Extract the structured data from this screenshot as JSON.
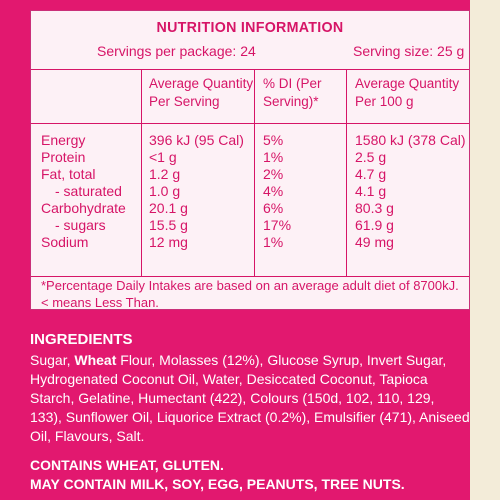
{
  "nutrition": {
    "title": "NUTRITION INFORMATION",
    "servings_per_package": "Servings per package: 24",
    "serving_size": "Serving size: 25 g",
    "headers": {
      "col1_line1": "Average Quantity",
      "col1_line2": "Per Serving",
      "col2_line1": "% DI (Per",
      "col2_line2": "Serving)*",
      "col3_line1": "Average Quantity",
      "col3_line2": "Per 100 g"
    },
    "rows": [
      {
        "label": "Energy",
        "per_serving": "396 kJ (95 Cal)",
        "di": "5%",
        "per_100g": "1580 kJ (378 Cal)"
      },
      {
        "label": "Protein",
        "per_serving": "<1 g",
        "di": "1%",
        "per_100g": "2.5 g"
      },
      {
        "label": "Fat, total",
        "per_serving": "1.2 g",
        "di": "2%",
        "per_100g": "4.7 g"
      },
      {
        "label": "- saturated",
        "per_serving": "1.0 g",
        "di": "4%",
        "per_100g": "4.1 g"
      },
      {
        "label": "Carbohydrate",
        "per_serving": "20.1 g",
        "di": "6%",
        "per_100g": "80.3 g"
      },
      {
        "label": "- sugars",
        "per_serving": "15.5 g",
        "di": "17%",
        "per_100g": "61.9 g"
      },
      {
        "label": "Sodium",
        "per_serving": "12 mg",
        "di": "1%",
        "per_100g": "49 mg"
      }
    ],
    "footnote_line1": "*Percentage Daily Intakes are based on an average adult diet of 8700kJ.",
    "footnote_line2": "< means Less Than."
  },
  "ingredients": {
    "title": "INGREDIENTS",
    "text_before_bold": "Sugar, ",
    "bold_word": "Wheat",
    "text_after_bold": " Flour, Molasses (12%), Glucose Syrup, Invert Sugar, Hydrogenated Coconut Oil, Water, Desiccated Coconut, Tapioca Starch, Gelatine, Humectant (422), Colours (150d, 102, 110, 129, 133), Sunflower Oil, Liquorice Extract (0.2%), Emulsifier (471), Aniseed Oil, Flavours, Salt.",
    "contains": "CONTAINS WHEAT, GLUTEN.",
    "may_contain": "MAY CONTAIN MILK, SOY, EGG, PEANUTS, TREE NUTS."
  },
  "colors": {
    "panel_magenta": "#e2186f",
    "table_background": "#fdf1f6",
    "table_text": "#d61567",
    "cream_edge": "#f3ecd9"
  }
}
